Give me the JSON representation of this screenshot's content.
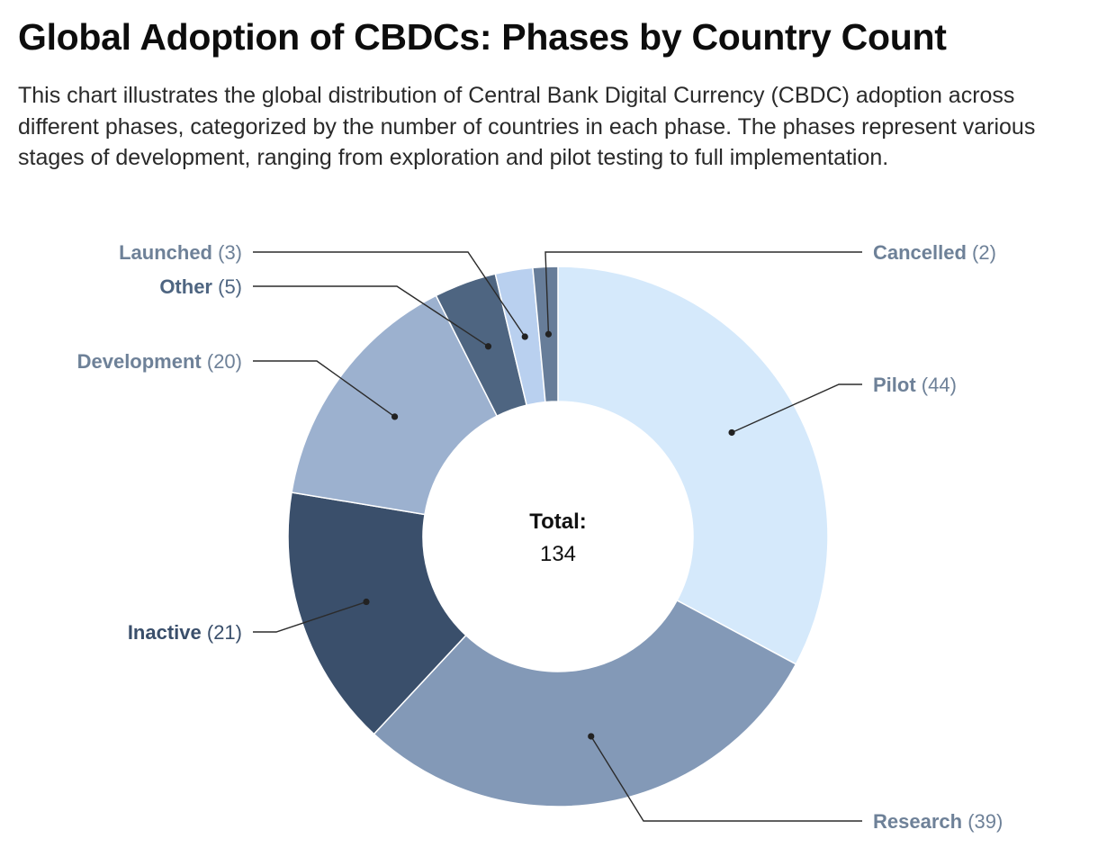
{
  "title": "Global Adoption of CBDCs: Phases by Country Count",
  "subtitle": "This chart illustrates the global distribution of Central Bank Digital Currency (CBDC) adoption across different phases, categorized by the number of countries in each phase. The phases represent various stages of development, ranging from exploration and pilot testing to full implementation.",
  "center": {
    "label": "Total:",
    "value": "134"
  },
  "chart_data": {
    "type": "pie",
    "variant": "donut",
    "title": "Global Adoption of CBDCs: Phases by Country Count",
    "total": 134,
    "categories": [
      "Pilot",
      "Research",
      "Inactive",
      "Development",
      "Other",
      "Launched",
      "Cancelled"
    ],
    "values": [
      44,
      39,
      21,
      20,
      5,
      3,
      2
    ],
    "slices": [
      {
        "name": "Pilot",
        "value": 44,
        "display_value": "(44)",
        "color": "#d5e9fb",
        "label_color": "#6e8198",
        "label_side": "right"
      },
      {
        "name": "Research",
        "value": 39,
        "display_value": "(39)",
        "color": "#8399b7",
        "label_color": "#6e8198",
        "label_side": "right"
      },
      {
        "name": "Inactive",
        "value": 21,
        "display_value": "(21)",
        "color": "#3a4f6b",
        "label_color": "#3a4f6b",
        "label_side": "left"
      },
      {
        "name": "Development",
        "value": 20,
        "display_value": "(20)",
        "color": "#9cb1cf",
        "label_color": "#6e8198",
        "label_side": "left"
      },
      {
        "name": "Other",
        "value": 5,
        "display_value": "(5)",
        "color": "#4e6581",
        "label_color": "#4e6581",
        "label_side": "left"
      },
      {
        "name": "Launched",
        "value": 3,
        "display_value": "(3)",
        "color": "#b9d0ef",
        "label_color": "#6e8198",
        "label_side": "left"
      },
      {
        "name": "Cancelled",
        "value": 2,
        "display_value": "(2)",
        "color": "#677d99",
        "label_color": "#6e8198",
        "label_side": "right"
      }
    ],
    "legend": "none",
    "labels": "outside with leader lines"
  }
}
